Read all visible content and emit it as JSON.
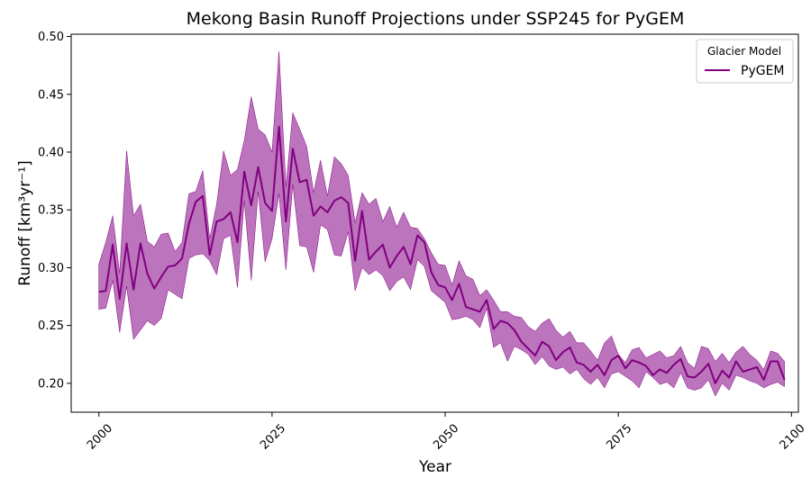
{
  "chart_data": {
    "type": "line",
    "title": "Mekong Basin Runoff Projections under SSP245 for PyGEM",
    "xlabel": "Year",
    "ylabel": "Runoff [km³yr⁻¹]",
    "xlim": [
      1996,
      2101
    ],
    "ylim": [
      0.175,
      0.502
    ],
    "xticks": [
      2000,
      2025,
      2050,
      2075,
      2100
    ],
    "yticks": [
      0.2,
      0.25,
      0.3,
      0.35,
      0.4,
      0.45,
      0.5
    ],
    "ytick_labels": [
      "0.20",
      "0.25",
      "0.30",
      "0.35",
      "0.40",
      "0.45",
      "0.50"
    ],
    "legend": {
      "title": "Glacier Model",
      "position": "top-right"
    },
    "colors": {
      "line": "#800080",
      "band": "#b565b5"
    },
    "series": [
      {
        "name": "PyGEM",
        "x": [
          2000,
          2001,
          2002,
          2003,
          2004,
          2005,
          2006,
          2007,
          2008,
          2009,
          2010,
          2011,
          2012,
          2013,
          2014,
          2015,
          2016,
          2017,
          2018,
          2019,
          2020,
          2021,
          2022,
          2023,
          2024,
          2025,
          2026,
          2027,
          2028,
          2029,
          2030,
          2031,
          2032,
          2033,
          2034,
          2035,
          2036,
          2037,
          2038,
          2039,
          2040,
          2041,
          2042,
          2043,
          2044,
          2045,
          2046,
          2047,
          2048,
          2049,
          2050,
          2051,
          2052,
          2053,
          2054,
          2055,
          2056,
          2057,
          2058,
          2059,
          2060,
          2061,
          2062,
          2063,
          2064,
          2065,
          2066,
          2067,
          2068,
          2069,
          2070,
          2071,
          2072,
          2073,
          2074,
          2075,
          2076,
          2077,
          2078,
          2079,
          2080,
          2081,
          2082,
          2083,
          2084,
          2085,
          2086,
          2087,
          2088,
          2089,
          2090,
          2091,
          2092,
          2093,
          2094,
          2095,
          2096,
          2097,
          2098,
          2099
        ],
        "y": [
          0.279,
          0.28,
          0.32,
          0.273,
          0.321,
          0.281,
          0.321,
          0.295,
          0.282,
          0.292,
          0.301,
          0.302,
          0.308,
          0.338,
          0.357,
          0.362,
          0.311,
          0.34,
          0.342,
          0.348,
          0.322,
          0.383,
          0.354,
          0.387,
          0.356,
          0.349,
          0.422,
          0.34,
          0.403,
          0.374,
          0.376,
          0.345,
          0.353,
          0.348,
          0.358,
          0.361,
          0.356,
          0.306,
          0.349,
          0.307,
          0.314,
          0.32,
          0.3,
          0.31,
          0.318,
          0.303,
          0.328,
          0.322,
          0.296,
          0.285,
          0.283,
          0.272,
          0.286,
          0.266,
          0.264,
          0.262,
          0.272,
          0.247,
          0.254,
          0.252,
          0.246,
          0.236,
          0.23,
          0.224,
          0.236,
          0.232,
          0.22,
          0.227,
          0.231,
          0.218,
          0.216,
          0.21,
          0.216,
          0.207,
          0.22,
          0.224,
          0.213,
          0.22,
          0.218,
          0.215,
          0.207,
          0.212,
          0.209,
          0.216,
          0.221,
          0.206,
          0.205,
          0.21,
          0.217,
          0.2,
          0.211,
          0.205,
          0.219,
          0.21,
          0.212,
          0.214,
          0.203,
          0.219,
          0.219,
          0.203
        ],
        "upper": [
          0.303,
          0.322,
          0.345,
          0.295,
          0.401,
          0.345,
          0.355,
          0.323,
          0.318,
          0.329,
          0.33,
          0.314,
          0.322,
          0.364,
          0.366,
          0.384,
          0.325,
          0.355,
          0.401,
          0.38,
          0.385,
          0.41,
          0.448,
          0.42,
          0.415,
          0.4,
          0.487,
          0.37,
          0.434,
          0.42,
          0.405,
          0.365,
          0.393,
          0.362,
          0.396,
          0.39,
          0.38,
          0.339,
          0.365,
          0.355,
          0.36,
          0.34,
          0.353,
          0.335,
          0.348,
          0.335,
          0.334,
          0.325,
          0.313,
          0.303,
          0.302,
          0.285,
          0.306,
          0.293,
          0.29,
          0.276,
          0.281,
          0.272,
          0.262,
          0.262,
          0.258,
          0.257,
          0.249,
          0.245,
          0.252,
          0.256,
          0.246,
          0.24,
          0.245,
          0.235,
          0.235,
          0.228,
          0.22,
          0.235,
          0.241,
          0.225,
          0.218,
          0.229,
          0.231,
          0.222,
          0.225,
          0.228,
          0.222,
          0.224,
          0.232,
          0.218,
          0.213,
          0.232,
          0.23,
          0.219,
          0.226,
          0.218,
          0.227,
          0.232,
          0.225,
          0.22,
          0.212,
          0.228,
          0.226,
          0.219
        ],
        "lower": [
          0.264,
          0.265,
          0.289,
          0.244,
          0.284,
          0.238,
          0.246,
          0.254,
          0.25,
          0.256,
          0.281,
          0.277,
          0.273,
          0.308,
          0.311,
          0.312,
          0.306,
          0.294,
          0.325,
          0.328,
          0.283,
          0.358,
          0.289,
          0.366,
          0.305,
          0.325,
          0.364,
          0.298,
          0.372,
          0.319,
          0.318,
          0.296,
          0.337,
          0.333,
          0.311,
          0.31,
          0.331,
          0.28,
          0.3,
          0.294,
          0.298,
          0.293,
          0.28,
          0.288,
          0.292,
          0.281,
          0.307,
          0.301,
          0.28,
          0.275,
          0.27,
          0.255,
          0.256,
          0.258,
          0.255,
          0.248,
          0.265,
          0.231,
          0.235,
          0.219,
          0.232,
          0.229,
          0.225,
          0.216,
          0.223,
          0.215,
          0.212,
          0.214,
          0.208,
          0.212,
          0.204,
          0.199,
          0.205,
          0.196,
          0.208,
          0.21,
          0.206,
          0.202,
          0.196,
          0.21,
          0.205,
          0.199,
          0.201,
          0.196,
          0.209,
          0.196,
          0.194,
          0.196,
          0.203,
          0.189,
          0.2,
          0.194,
          0.207,
          0.205,
          0.202,
          0.2,
          0.196,
          0.199,
          0.201,
          0.197
        ]
      }
    ]
  }
}
